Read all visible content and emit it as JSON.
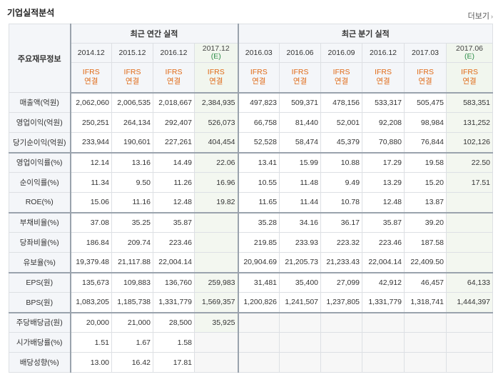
{
  "header": {
    "title": "기업실적분석",
    "more_label": "더보기"
  },
  "table": {
    "corner_label": "주요재무정보",
    "groups": [
      {
        "label": "최근 연간 실적",
        "span": 4
      },
      {
        "label": "최근 분기 실적",
        "span": 6
      }
    ],
    "periods": [
      {
        "label": "2014.12",
        "est": false
      },
      {
        "label": "2015.12",
        "est": false
      },
      {
        "label": "2016.12",
        "est": false
      },
      {
        "label": "2017.12",
        "suffix": "(E)",
        "est": true
      },
      {
        "label": "2016.03",
        "est": false
      },
      {
        "label": "2016.06",
        "est": false
      },
      {
        "label": "2016.09",
        "est": false
      },
      {
        "label": "2016.12",
        "est": false
      },
      {
        "label": "2017.03",
        "est": false
      },
      {
        "label": "2017.06",
        "suffix": "(E)",
        "est": true
      }
    ],
    "ifrs_line1": "IFRS",
    "ifrs_line2": "연결",
    "rows": [
      {
        "label": "매출액(억원)",
        "values": [
          "2,062,060",
          "2,006,535",
          "2,018,667",
          "2,384,935",
          "497,823",
          "509,371",
          "478,156",
          "533,317",
          "505,475",
          "583,351"
        ]
      },
      {
        "label": "영업이익(억원)",
        "values": [
          "250,251",
          "264,134",
          "292,407",
          "526,073",
          "66,758",
          "81,440",
          "52,001",
          "92,208",
          "98,984",
          "131,252"
        ]
      },
      {
        "label": "당기순이익(억원)",
        "values": [
          "233,944",
          "190,601",
          "227,261",
          "404,454",
          "52,528",
          "58,474",
          "45,379",
          "70,880",
          "76,844",
          "102,126"
        ]
      },
      {
        "label": "영업이익률(%)",
        "values": [
          "12.14",
          "13.16",
          "14.49",
          "22.06",
          "13.41",
          "15.99",
          "10.88",
          "17.29",
          "19.58",
          "22.50"
        ],
        "emph_top": true
      },
      {
        "label": "순이익률(%)",
        "values": [
          "11.34",
          "9.50",
          "11.26",
          "16.96",
          "10.55",
          "11.48",
          "9.49",
          "13.29",
          "15.20",
          "17.51"
        ]
      },
      {
        "label": "ROE(%)",
        "values": [
          "15.06",
          "11.16",
          "12.48",
          "19.82",
          "11.65",
          "11.44",
          "10.78",
          "12.48",
          "13.87",
          ""
        ]
      },
      {
        "label": "부채비율(%)",
        "values": [
          "37.08",
          "35.25",
          "35.87",
          "",
          "35.28",
          "34.16",
          "36.17",
          "35.87",
          "39.20",
          ""
        ],
        "emph_top": true
      },
      {
        "label": "당좌비율(%)",
        "values": [
          "186.84",
          "209.74",
          "223.46",
          "",
          "219.85",
          "233.93",
          "223.32",
          "223.46",
          "187.58",
          ""
        ]
      },
      {
        "label": "유보율(%)",
        "values": [
          "19,379.48",
          "21,117.88",
          "22,004.14",
          "",
          "20,904.69",
          "21,205.73",
          "21,233.43",
          "22,004.14",
          "22,409.50",
          ""
        ]
      },
      {
        "label": "EPS(원)",
        "values": [
          "135,673",
          "109,883",
          "136,760",
          "259,983",
          "31,481",
          "35,400",
          "27,099",
          "42,912",
          "46,457",
          "64,133"
        ],
        "emph_top": true
      },
      {
        "label": "BPS(원)",
        "values": [
          "1,083,205",
          "1,185,738",
          "1,331,779",
          "1,569,357",
          "1,200,826",
          "1,241,507",
          "1,237,805",
          "1,331,779",
          "1,318,741",
          "1,444,397"
        ]
      },
      {
        "label": "주당배당금(원)",
        "values": [
          "20,000",
          "21,000",
          "28,500",
          "35,925",
          "",
          "",
          "",
          "",
          "",
          ""
        ],
        "emph_top": true,
        "empty_row": true
      },
      {
        "label": "시가배당률(%)",
        "values": [
          "1.51",
          "1.67",
          "1.58",
          "",
          "",
          "",
          "",
          "",
          "",
          ""
        ],
        "empty_row": true
      },
      {
        "label": "배당성향(%)",
        "values": [
          "13.00",
          "16.42",
          "17.81",
          "",
          "",
          "",
          "",
          "",
          "",
          ""
        ],
        "empty_row": true
      }
    ]
  }
}
